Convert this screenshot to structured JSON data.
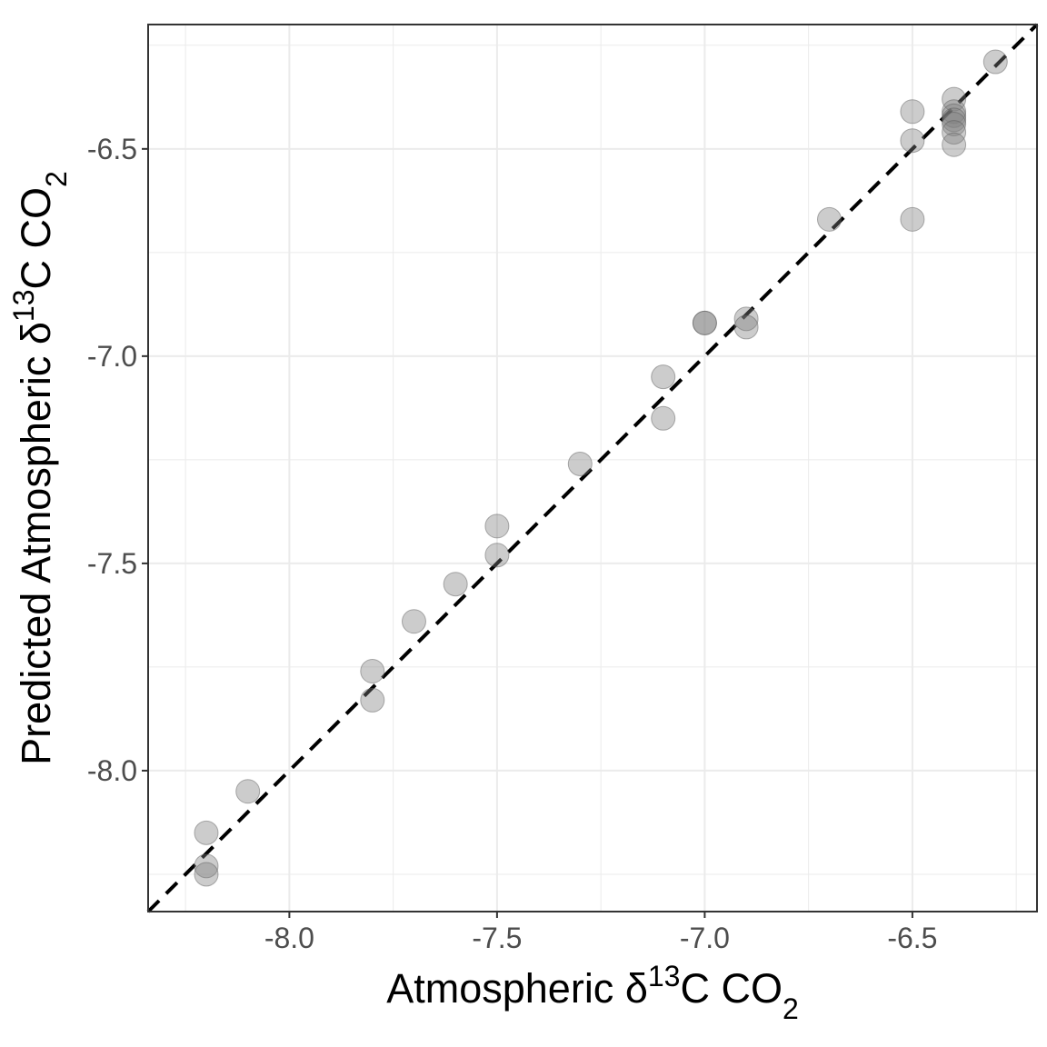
{
  "chart_data": {
    "type": "scatter",
    "title": "",
    "xlabel": {
      "prefix": "Atmospheric δ",
      "sup": "13",
      "mid": "C CO",
      "sub": "2"
    },
    "ylabel": {
      "prefix": "Predicted Atmospheric δ",
      "sup": "13",
      "mid": "C CO",
      "sub": "2"
    },
    "xlim": [
      -8.34,
      -6.2
    ],
    "ylim": [
      -8.34,
      -6.2
    ],
    "x_ticks": [
      -8.0,
      -7.5,
      -7.0,
      -6.5
    ],
    "x_tick_labels": [
      "-8.0",
      "-7.5",
      "-7.0",
      "-6.5"
    ],
    "y_ticks": [
      -8.0,
      -7.5,
      -7.0,
      -6.5
    ],
    "y_tick_labels": [
      "-8.0",
      "-7.5",
      "-7.0",
      "-6.5"
    ],
    "grid": true,
    "reference_line": {
      "type": "identity",
      "style": "dashed",
      "color": "#000000"
    },
    "point_color": "#808080",
    "point_stroke": "#555555",
    "points": [
      {
        "x": -8.2,
        "y": -8.15
      },
      {
        "x": -8.2,
        "y": -8.23
      },
      {
        "x": -8.2,
        "y": -8.25
      },
      {
        "x": -8.1,
        "y": -8.05
      },
      {
        "x": -7.8,
        "y": -7.76
      },
      {
        "x": -7.8,
        "y": -7.83
      },
      {
        "x": -7.7,
        "y": -7.64
      },
      {
        "x": -7.6,
        "y": -7.55
      },
      {
        "x": -7.5,
        "y": -7.41
      },
      {
        "x": -7.5,
        "y": -7.48
      },
      {
        "x": -7.3,
        "y": -7.26
      },
      {
        "x": -7.1,
        "y": -7.05
      },
      {
        "x": -7.1,
        "y": -7.15
      },
      {
        "x": -7.0,
        "y": -6.92
      },
      {
        "x": -7.0,
        "y": -6.92
      },
      {
        "x": -6.9,
        "y": -6.91
      },
      {
        "x": -6.9,
        "y": -6.93
      },
      {
        "x": -6.7,
        "y": -6.67
      },
      {
        "x": -6.5,
        "y": -6.41
      },
      {
        "x": -6.5,
        "y": -6.48
      },
      {
        "x": -6.5,
        "y": -6.67
      },
      {
        "x": -6.4,
        "y": -6.38
      },
      {
        "x": -6.4,
        "y": -6.41
      },
      {
        "x": -6.4,
        "y": -6.42
      },
      {
        "x": -6.4,
        "y": -6.43
      },
      {
        "x": -6.4,
        "y": -6.44
      },
      {
        "x": -6.4,
        "y": -6.46
      },
      {
        "x": -6.4,
        "y": -6.49
      },
      {
        "x": -6.3,
        "y": -6.29
      }
    ]
  }
}
